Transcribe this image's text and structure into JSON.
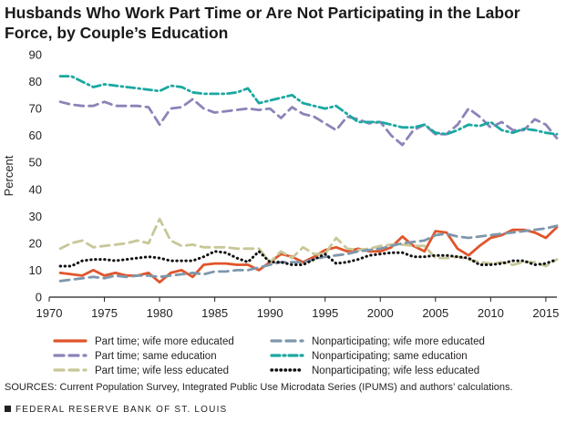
{
  "title": "Husbands Who Work Part Time or Are Not Participating in the Labor Force, by Couple’s Education",
  "sources": "SOURCES: Current Population Survey, Integrated Public Use Microdata Series (IPUMS) and authors’ calculations.",
  "footer": "FEDERAL RESERVE BANK OF ST. LOUIS",
  "chart_data": {
    "type": "line",
    "title": "Husbands Who Work Part Time or Are Not Participating in the Labor Force, by Couple’s Education",
    "xlabel": "",
    "ylabel": "Percent",
    "xlim": [
      1970,
      2016
    ],
    "ylim": [
      0,
      90
    ],
    "xticks": [
      1970,
      1975,
      1980,
      1985,
      1990,
      1995,
      2000,
      2005,
      2010,
      2015
    ],
    "yticks": [
      0,
      10,
      20,
      30,
      40,
      50,
      60,
      70,
      80,
      90
    ],
    "grid": false,
    "legend_position": "bottom",
    "x": [
      1971,
      1972,
      1973,
      1974,
      1975,
      1976,
      1977,
      1978,
      1979,
      1980,
      1981,
      1982,
      1983,
      1984,
      1985,
      1986,
      1987,
      1988,
      1989,
      1990,
      1991,
      1992,
      1993,
      1994,
      1995,
      1996,
      1997,
      1998,
      1999,
      2000,
      2001,
      2002,
      2003,
      2004,
      2005,
      2006,
      2007,
      2008,
      2009,
      2010,
      2011,
      2012,
      2013,
      2014,
      2015,
      2016
    ],
    "series": [
      {
        "name": "Part time; wife more educated",
        "color": "#e0552b",
        "style": "solid",
        "values": [
          9,
          8.5,
          8,
          10,
          8,
          9,
          8,
          8,
          9,
          5.5,
          9,
          10,
          7.5,
          12,
          12.5,
          12.5,
          12,
          12,
          10,
          13,
          16,
          15,
          13,
          15,
          17.5,
          18.5,
          17,
          18,
          17,
          17,
          18.5,
          22.5,
          19,
          17,
          24.5,
          24,
          18,
          15.5,
          19,
          22,
          23,
          25,
          25,
          24,
          22,
          26
        ]
      },
      {
        "name": "Part time; same education",
        "color": "#8b84b8",
        "style": "dash",
        "values": [
          72.5,
          71.5,
          71,
          71,
          72.5,
          71,
          71,
          71,
          70.5,
          64,
          70,
          70.5,
          73.5,
          70,
          68.5,
          69,
          69.5,
          70,
          69.5,
          70,
          66.5,
          70.5,
          68,
          67,
          64.5,
          62,
          67,
          66,
          64.5,
          65,
          60,
          56.5,
          62,
          64,
          60.5,
          60.5,
          64,
          70,
          67,
          63,
          65,
          62,
          62,
          66,
          64,
          59
        ]
      },
      {
        "name": "Part time; wife less educated",
        "color": "#c7c798",
        "style": "dash",
        "values": [
          18,
          20,
          21,
          18.5,
          19,
          19.5,
          20,
          21,
          20,
          29,
          21,
          19,
          19.5,
          18.5,
          18.5,
          18.5,
          18,
          18,
          18,
          13,
          17,
          14.5,
          18.5,
          16,
          16,
          22,
          18,
          17.5,
          18,
          19,
          19.5,
          19.5,
          19,
          19,
          14.5,
          14.5,
          15,
          14,
          13,
          12.5,
          13,
          12,
          13,
          13,
          11.5,
          14
        ]
      },
      {
        "name": "Nonparticipating; wife more educated",
        "color": "#7e97ac",
        "style": "dash",
        "values": [
          6,
          6.5,
          7,
          7.5,
          7,
          8,
          7.5,
          8,
          8,
          7.5,
          8,
          8.5,
          9,
          8.5,
          9.5,
          9.5,
          10,
          10,
          11,
          12,
          13,
          13,
          13,
          14,
          15,
          15.5,
          16,
          17,
          17.5,
          18,
          19,
          20,
          20.5,
          21,
          23,
          23.5,
          22.5,
          22,
          22.5,
          23,
          23.5,
          24,
          24.5,
          25,
          25.5,
          26.5
        ]
      },
      {
        "name": "Nonparticipating; same education",
        "color": "#1aa8a1",
        "style": "dashdot",
        "values": [
          82,
          82,
          80,
          78,
          79,
          78.5,
          78,
          77.5,
          77,
          76.5,
          78.5,
          78,
          76,
          75.5,
          75.5,
          75.5,
          76,
          77.5,
          72,
          73,
          74,
          75,
          72,
          71,
          70,
          71,
          68,
          65,
          65,
          65,
          64,
          63,
          63,
          64,
          61,
          60.5,
          62,
          64,
          63.5,
          65,
          62,
          61,
          62.5,
          62,
          61,
          60.5
        ]
      },
      {
        "name": "Nonparticipating; wife less educated",
        "color": "#111111",
        "style": "dot",
        "values": [
          11.5,
          11.5,
          13.5,
          14,
          14,
          13.5,
          14,
          14.5,
          15,
          14.5,
          13.5,
          13.5,
          13.5,
          15,
          17,
          16.5,
          14.5,
          13,
          17,
          13,
          13,
          12,
          12,
          14,
          16,
          12.5,
          13,
          14,
          15.5,
          16,
          16.5,
          16.5,
          15,
          15,
          15.5,
          15.5,
          15,
          14.5,
          12,
          12,
          12.5,
          13.5,
          13.5,
          12,
          12.5,
          14
        ]
      }
    ]
  }
}
